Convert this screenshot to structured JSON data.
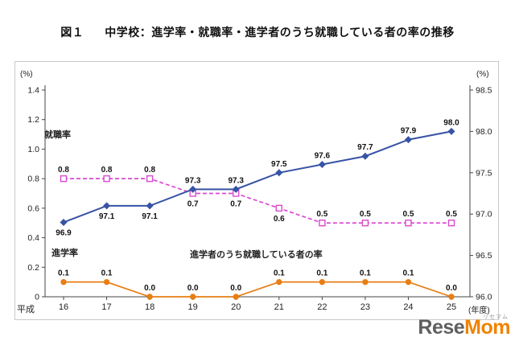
{
  "chart_data": {
    "type": "line",
    "figure_label": "図１",
    "title": "中学校：進学率・就職率・進学者のうち就職している者の率の推移",
    "x_categories": [
      "16",
      "17",
      "18",
      "19",
      "20",
      "21",
      "22",
      "23",
      "24",
      "25"
    ],
    "x_axis": {
      "prefix": "平成",
      "suffix": "(年度)"
    },
    "left_axis": {
      "unit": "(%)",
      "range": [
        0,
        1.4
      ],
      "ticks": [
        "0",
        "0.2",
        "0.4",
        "0.6",
        "0.8",
        "1.0",
        "1.2",
        "1.4"
      ]
    },
    "right_axis": {
      "unit": "(%)",
      "range": [
        96.0,
        98.5
      ],
      "ticks": [
        "96.0",
        "96.5",
        "97.0",
        "97.5",
        "98.0",
        "98.5"
      ]
    },
    "grid": "off",
    "legend": "inline-annotations",
    "series": [
      {
        "name": "進学率",
        "axis": "right",
        "color": "#3753a4",
        "style": "solid",
        "marker": "diamond",
        "values": [
          96.9,
          97.1,
          97.1,
          97.3,
          97.3,
          97.5,
          97.6,
          97.7,
          97.9,
          98.0
        ],
        "labels": [
          "96.9",
          "97.1",
          "97.1",
          "97.3",
          "97.3",
          "97.5",
          "97.6",
          "97.7",
          "97.9",
          "98.0"
        ],
        "label_pos": [
          "below",
          "below",
          "below",
          "above",
          "above",
          "above",
          "above",
          "above",
          "above",
          "above"
        ]
      },
      {
        "name": "就職率",
        "axis": "left",
        "color": "#d94ad1",
        "style": "dashed",
        "marker": "square-open",
        "values": [
          0.8,
          0.8,
          0.8,
          0.7,
          0.7,
          0.6,
          0.5,
          0.5,
          0.5,
          0.5
        ],
        "labels": [
          "0.8",
          "0.8",
          "0.8",
          "0.7",
          "0.7",
          "0.6",
          "0.5",
          "0.5",
          "0.5",
          "0.5"
        ],
        "label_pos": [
          "above",
          "above",
          "above",
          "below",
          "below",
          "below",
          "above",
          "above",
          "above",
          "above"
        ]
      },
      {
        "name": "進学者のうち就職している者の率",
        "axis": "left",
        "color": "#e87e14",
        "style": "solid",
        "marker": "circle",
        "values": [
          0.1,
          0.1,
          0.0,
          0.0,
          0.0,
          0.1,
          0.1,
          0.1,
          0.1,
          0.0
        ],
        "labels": [
          "0.1",
          "0.1",
          "0.0",
          "0.0",
          "0.0",
          "0.1",
          "0.1",
          "0.1",
          "0.1",
          "0.0"
        ],
        "label_pos": [
          "above",
          "above",
          "above",
          "above",
          "above",
          "above",
          "above",
          "above",
          "above",
          "above"
        ]
      }
    ],
    "annotations": [
      {
        "text": "就職率"
      },
      {
        "text": "進学率"
      },
      {
        "text": "進学者のうち就職している者の率"
      }
    ]
  },
  "watermark": {
    "part1": "Rese",
    "part2": "Mom",
    "ruby": "リセマム",
    "color_part1": "#5f5f5f",
    "color_part2": "#f08300"
  }
}
